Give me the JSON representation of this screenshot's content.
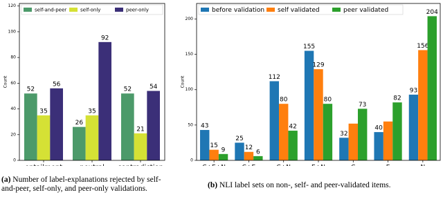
{
  "chart_data": [
    {
      "type": "bar",
      "ylabel": "Count",
      "categories": [
        "entailment",
        "neutral",
        "contradiction"
      ],
      "series": [
        {
          "name": "self-and-peer",
          "color": "#4c9a6a",
          "values": [
            52,
            26,
            52
          ]
        },
        {
          "name": "self-only",
          "color": "#d5e135",
          "values": [
            35,
            35,
            21
          ]
        },
        {
          "name": "peer-only",
          "color": "#3b2f78",
          "values": [
            56,
            92,
            54
          ]
        }
      ],
      "ylim": [
        0,
        122
      ],
      "yticks": [
        0,
        20,
        40,
        60,
        80,
        100,
        120
      ],
      "legend": "top",
      "caption": {
        "label": "(a)",
        "text": "Number of label-explanations rejected by self-and-peer, self-only, and peer-only validations."
      }
    },
    {
      "type": "bar",
      "ylabel": "Count",
      "categories": [
        "C+E+N",
        "C+E",
        "C+N",
        "E+N",
        "C",
        "E",
        "N"
      ],
      "series": [
        {
          "name": "before validation",
          "color": "#1f77b4",
          "values": [
            43,
            25,
            112,
            155,
            32,
            40,
            93
          ]
        },
        {
          "name": "self validated",
          "color": "#ff7f0e",
          "values": [
            15,
            12,
            80,
            129,
            52,
            55,
            156
          ],
          "value_labels": [
            "15",
            "12",
            "80",
            "129",
            null,
            null,
            "156"
          ]
        },
        {
          "name": "peer validated",
          "color": "#2ca02c",
          "values": [
            9,
            6,
            42,
            80,
            73,
            82,
            204
          ]
        }
      ],
      "ylim": [
        0,
        222
      ],
      "yticks": [
        0,
        50,
        100,
        150,
        200
      ],
      "legend": "upper left",
      "caption": {
        "label": "(b)",
        "text": "NLI label sets on non-, self- and peer-validated items."
      }
    }
  ]
}
